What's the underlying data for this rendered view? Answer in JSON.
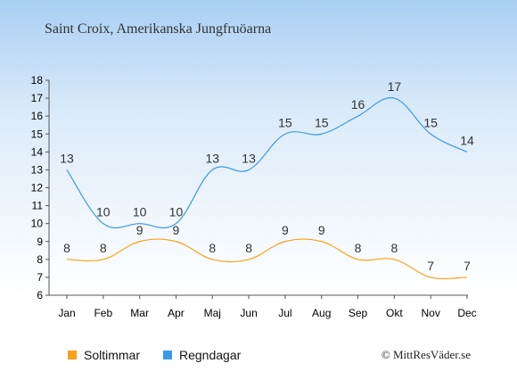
{
  "title": "Saint Croix, Amerikanska Jungfruöarna",
  "copyright": "© MittResVäder.se",
  "legend": {
    "sun_label": "Soltimmar",
    "rain_label": "Regndagar"
  },
  "colors": {
    "sun": "#f7a11a",
    "rain": "#3b9ae8",
    "axis": "#555555"
  },
  "chart_data": {
    "type": "line",
    "categories": [
      "Jan",
      "Feb",
      "Mar",
      "Apr",
      "Maj",
      "Jun",
      "Jul",
      "Aug",
      "Sep",
      "Okt",
      "Nov",
      "Dec"
    ],
    "series": [
      {
        "name": "Soltimmar",
        "values": [
          8,
          8,
          9,
          9,
          8,
          8,
          9,
          9,
          8,
          8,
          7,
          7
        ]
      },
      {
        "name": "Regndagar",
        "values": [
          13,
          10,
          10,
          10,
          13,
          13,
          15,
          15,
          16,
          17,
          15,
          14
        ]
      }
    ],
    "ylim": [
      6,
      18
    ],
    "yticks": [
      6,
      7,
      8,
      9,
      10,
      11,
      12,
      13,
      14,
      15,
      16,
      17,
      18
    ],
    "grid": false,
    "legend_position": "bottom"
  }
}
